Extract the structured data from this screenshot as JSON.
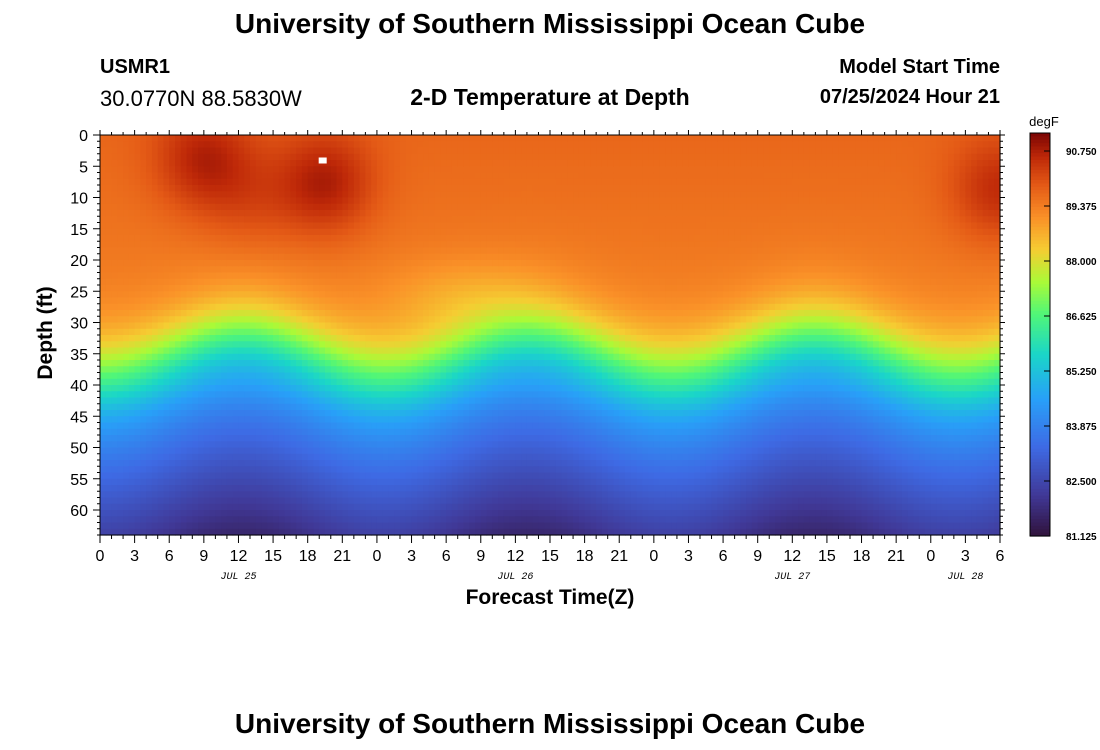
{
  "header": {
    "title": "University of Southern Mississippi Ocean Cube",
    "station": "USMR1",
    "coords": "30.0770N  88.5830W",
    "subtitle": "2-D Temperature at Depth",
    "model_label": "Model Start Time",
    "model_time": "07/25/2024 Hour 21"
  },
  "footer": {
    "title": "University of Southern Mississippi Ocean Cube"
  },
  "chart_data": {
    "type": "heatmap",
    "title": "2-D Temperature at Depth",
    "xlabel": "Forecast Time(Z)",
    "ylabel": "Depth (ft)",
    "x_ticks": [
      "0",
      "3",
      "6",
      "9",
      "12",
      "15",
      "18",
      "21",
      "0",
      "3",
      "6",
      "9",
      "12",
      "15",
      "18",
      "21",
      "0",
      "3",
      "6",
      "9",
      "12",
      "15",
      "18",
      "21",
      "0",
      "3",
      "6"
    ],
    "x_range_hours": [
      0,
      78
    ],
    "day_labels": [
      {
        "label": "JUL 25",
        "hour": 12
      },
      {
        "label": "JUL 26",
        "hour": 36
      },
      {
        "label": "JUL 27",
        "hour": 60
      },
      {
        "label": "JUL 28",
        "hour": 75
      }
    ],
    "y_ticks": [
      0,
      5,
      10,
      15,
      20,
      25,
      30,
      35,
      40,
      45,
      50,
      55,
      60
    ],
    "y_range_ft": [
      0,
      64
    ],
    "colorbar": {
      "unit": "degF",
      "min": 81.125,
      "max": 91.2,
      "ticks": [
        "90.750",
        "89.375",
        "88.000",
        "86.625",
        "85.250",
        "83.875",
        "82.500",
        "81.125"
      ]
    },
    "temperature_structure": {
      "surface_temp_degF": 89.7,
      "bottom_temp_degF": 81.8,
      "thermocline_center_depth_ft": 36,
      "warm_maxima_hours": [
        9,
        19.5,
        78
      ],
      "peak_temp_degF": 91.0
    }
  }
}
